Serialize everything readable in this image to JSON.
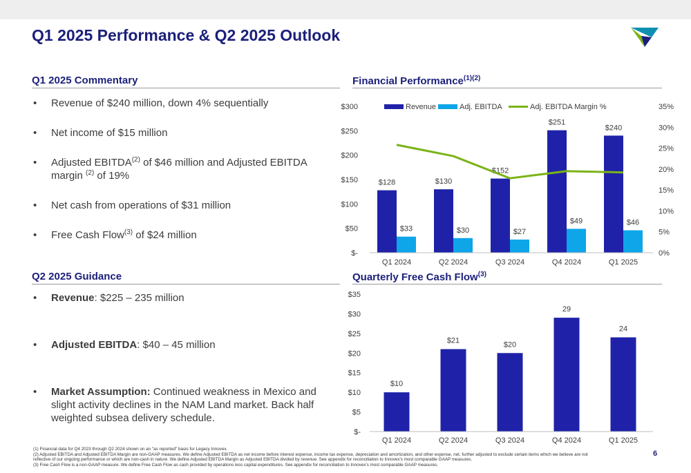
{
  "title": "Q1 2025 Performance & Q2 2025 Outlook",
  "commentary": {
    "heading": "Q1 2025 Commentary",
    "items": [
      {
        "text": "Revenue of $240 million, down 4% sequentially"
      },
      {
        "text": "Net income of $15 million"
      },
      {
        "pre": "Adjusted EBITDA",
        "sup": "(2)",
        "mid": " of $46 million and Adjusted EBITDA margin ",
        "sup2": "(2)",
        "post": " of 19%"
      },
      {
        "text": "Net cash from operations of $31 million"
      },
      {
        "pre": "Free Cash Flow",
        "sup": "(3)",
        "post": " of $24 million"
      }
    ]
  },
  "guidance": {
    "heading": "Q2 2025 Guidance",
    "items": [
      {
        "bold": "Revenue",
        "text": ": $225 – 235 million"
      },
      {
        "bold": "Adjusted EBITDA",
        "text": ": $40 – 45 million"
      },
      {
        "bold": "Market Assumption:",
        "text": " Continued weakness in Mexico and slight activity declines in the NAM Land market. Back half weighted subsea delivery schedule."
      }
    ]
  },
  "financial": {
    "heading": "Financial Performance",
    "heading_sup": "(1)(2)"
  },
  "fcf": {
    "heading": "Quarterly Free Cash Flow",
    "heading_sup": "(3)"
  },
  "chart_data": [
    {
      "type": "bar",
      "categories": [
        "Q1 2024",
        "Q2 2024",
        "Q3 2024",
        "Q4 2024",
        "Q1 2025"
      ],
      "series": [
        {
          "name": "Revenue",
          "kind": "bar",
          "color": "#1f22a8",
          "values": [
            128,
            130,
            152,
            251,
            240
          ],
          "labels": [
            "$128",
            "$130",
            "$152",
            "$251",
            "$240"
          ]
        },
        {
          "name": "Adj. EBITDA",
          "kind": "bar",
          "color": "#0ea5e9",
          "values": [
            33,
            30,
            27,
            49,
            46
          ],
          "labels": [
            "$33",
            "$30",
            "$27",
            "$49",
            "$46"
          ]
        },
        {
          "name": "Adj. EBITDA Margin %",
          "kind": "line",
          "axis": "right",
          "color": "#7ab317",
          "values": [
            25.8,
            23.1,
            17.8,
            19.5,
            19.2
          ]
        }
      ],
      "ylim": [
        0,
        300
      ],
      "yticks": [
        0,
        50,
        100,
        150,
        200,
        250,
        300
      ],
      "ytick_labels": [
        "$-",
        "$50",
        "$100",
        "$150",
        "$200",
        "$250",
        "$300"
      ],
      "y2lim": [
        0,
        35
      ],
      "y2ticks": [
        0,
        5,
        10,
        15,
        20,
        25,
        30,
        35
      ],
      "y2tick_labels": [
        "0%",
        "5%",
        "10%",
        "15%",
        "20%",
        "25%",
        "30%",
        "35%"
      ],
      "legend": "top",
      "grid": false
    },
    {
      "type": "bar",
      "categories": [
        "Q1 2024",
        "Q2 2024",
        "Q3 2024",
        "Q4 2024",
        "Q1 2025"
      ],
      "series": [
        {
          "color": "#1f22a8",
          "values": [
            10,
            21,
            20,
            29,
            24
          ],
          "labels": [
            "$10",
            "$21",
            "$20",
            "29",
            "24"
          ]
        }
      ],
      "ylim": [
        0,
        35
      ],
      "yticks": [
        0,
        5,
        10,
        15,
        20,
        25,
        30,
        35
      ],
      "ytick_labels": [
        "$-",
        "$5",
        "$10",
        "$15",
        "$20",
        "$25",
        "$30",
        "$35"
      ],
      "grid": false
    }
  ],
  "footnotes": [
    "(1) Financial data for Q4 2023 through Q2 2024 shown on an \"as reported\" basis for Legacy Innovex.",
    "(2) Adjusted EBITDA and Adjusted EBITDA Margin are non-GAAP measures. We define Adjusted EBITDA as net income before interest expense, income tax expense, depreciation and amortization, and other expense, net, further adjusted to exclude certain items which we believe are not",
    "reflective of our ongoing performance or which are non-cash in nature. We define Adjusted EBITDA Margin as Adjusted EBITDA divided by revenue. See appendix for reconciliation to Innovex's most comparable GAAP measures.",
    "(3) Free Cash Flow is a non-GAAP measure.  We define Free Cash Flow as cash provided by operations less capital expenditures.  See appendix for reconciliation to Innovex's most comparable GAAP measures."
  ],
  "page_number": "6",
  "colors": {
    "navy": "#1b1f7a",
    "bar_navy": "#1f22a8",
    "bar_cyan": "#0ea5e9",
    "line_green": "#7ab317",
    "logo_teal": "#0f8fb0",
    "logo_green": "#7ab317"
  }
}
